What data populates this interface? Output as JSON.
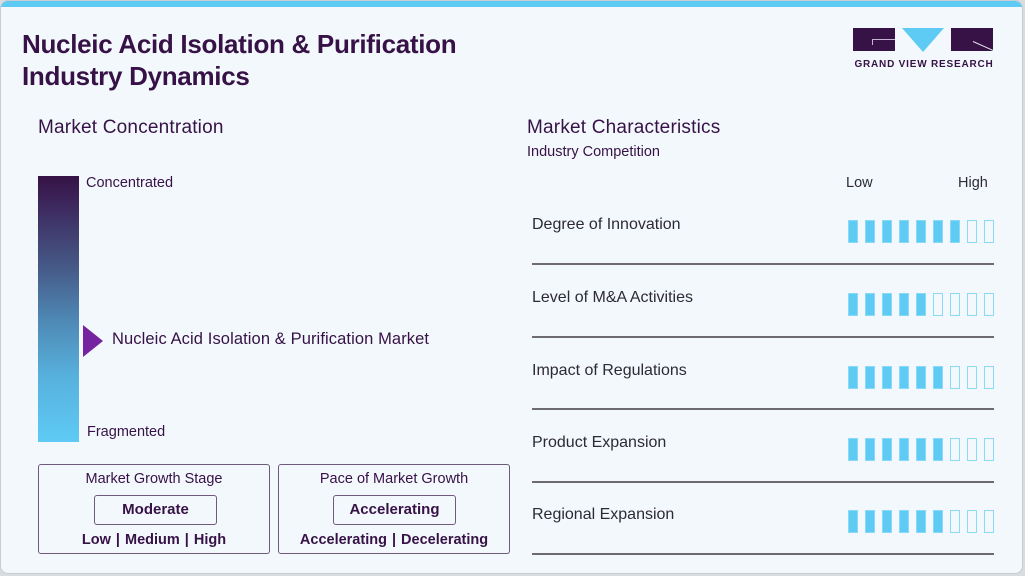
{
  "header": {
    "title_line1": "Nucleic Acid Isolation & Purification",
    "title_line2": "Industry Dynamics",
    "logo_text": "GRAND VIEW RESEARCH"
  },
  "colors": {
    "accent_blue": "#5ecbf5",
    "brand_purple": "#361246",
    "marker_purple": "#7523a0"
  },
  "market_concentration": {
    "heading": "Market Concentration",
    "top_label": "Concentrated",
    "bottom_label": "Fragmented",
    "marker_label": "Nucleic Acid Isolation & Purification Market",
    "marker_position_pct": 61
  },
  "growth_stage": {
    "title": "Market Growth Stage",
    "value": "Moderate",
    "options_text": "Low | Medium | High"
  },
  "growth_pace": {
    "title": "Pace of Market Growth",
    "value": "Accelerating",
    "options_text": "Accelerating | Decelerating"
  },
  "market_characteristics": {
    "heading": "Market Characteristics",
    "subheading": "Industry Competition",
    "scale_low": "Low",
    "scale_high": "High",
    "total_bars": 9,
    "rows": [
      {
        "label": "Degree of Innovation",
        "filled": 7
      },
      {
        "label": "Level of M&A Activities",
        "filled": 5
      },
      {
        "label": "Impact of Regulations",
        "filled": 6
      },
      {
        "label": "Product Expansion",
        "filled": 6
      },
      {
        "label": "Regional Expansion",
        "filled": 6
      }
    ]
  }
}
